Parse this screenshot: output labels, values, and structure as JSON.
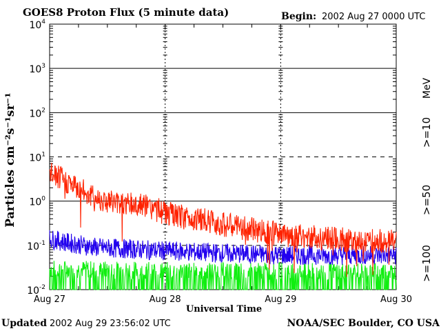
{
  "chart_data": {
    "type": "line",
    "title": "GOES8 Proton Flux (5 minute data)",
    "begin_label": "Begin:",
    "begin_value": "2002 Aug 27 0000 UTC",
    "xlabel": "Universal Time",
    "ylabel": "Particles cm⁻²s⁻¹sr⁻¹",
    "yscale": "log",
    "ylim": [
      0.01,
      10000
    ],
    "y_ticks": [
      {
        "base": "10",
        "exp": "4"
      },
      {
        "base": "10",
        "exp": "3"
      },
      {
        "base": "10",
        "exp": "2"
      },
      {
        "base": "10",
        "exp": "1"
      },
      {
        "base": "10",
        "exp": "0"
      },
      {
        "base": "10",
        "exp": "-1"
      },
      {
        "base": "10",
        "exp": "-2"
      }
    ],
    "x_ticks": [
      "Aug 27",
      "Aug 28",
      "Aug 29",
      "Aug 30"
    ],
    "xlim_days": [
      27,
      30
    ],
    "unit_label": "MeV",
    "series": [
      {
        "name": ">=10",
        "color": "#ff2200",
        "points": [
          [
            27.0,
            4.2
          ],
          [
            27.1,
            3.2
          ],
          [
            27.25,
            1.9
          ],
          [
            27.4,
            1.2
          ],
          [
            27.55,
            0.95
          ],
          [
            27.7,
            0.85
          ],
          [
            27.85,
            0.75
          ],
          [
            28.0,
            0.55
          ],
          [
            28.1,
            0.45
          ],
          [
            28.3,
            0.4
          ],
          [
            28.5,
            0.3
          ],
          [
            28.7,
            0.24
          ],
          [
            28.9,
            0.2
          ],
          [
            29.0,
            0.17
          ],
          [
            29.3,
            0.15
          ],
          [
            29.6,
            0.13
          ],
          [
            30.0,
            0.12
          ]
        ]
      },
      {
        "name": ">=50",
        "color": "#2200ee",
        "points": [
          [
            27.0,
            0.14
          ],
          [
            27.2,
            0.11
          ],
          [
            27.4,
            0.09
          ],
          [
            27.6,
            0.085
          ],
          [
            27.8,
            0.08
          ],
          [
            28.0,
            0.075
          ],
          [
            28.3,
            0.07
          ],
          [
            28.6,
            0.065
          ],
          [
            29.0,
            0.06
          ],
          [
            29.5,
            0.06
          ],
          [
            30.0,
            0.06
          ]
        ]
      },
      {
        "name": ">=100",
        "color": "#11ee11",
        "points": [
          [
            27.0,
            0.03
          ],
          [
            27.5,
            0.028
          ],
          [
            28.0,
            0.027
          ],
          [
            28.5,
            0.026
          ],
          [
            29.0,
            0.026
          ],
          [
            29.5,
            0.026
          ],
          [
            30.0,
            0.026
          ]
        ]
      }
    ],
    "grid": "solid lines at decades, dashed lines at 10^1 and 10^-1, dashed day separators",
    "legend": "right side, vertical"
  },
  "footer": {
    "updated_label": "Updated",
    "updated_value": "2002 Aug 29 23:56:02 UTC",
    "credit": "NOAA/SEC Boulder, CO USA"
  }
}
